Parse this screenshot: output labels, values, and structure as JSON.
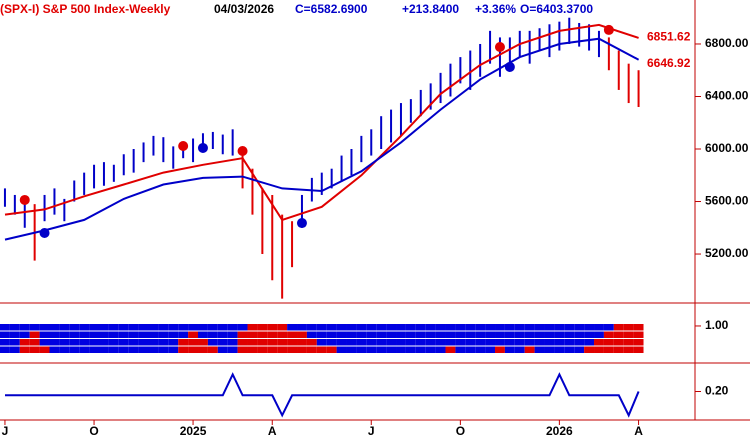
{
  "chart_data": [
    {
      "type": "hilo",
      "header": {
        "symbol": "(SPX-I) S&P 500 Index-Weekly",
        "date": "04/03/2026",
        "close": "C=6582.6900",
        "change": "+213.8400",
        "change_pct": "+3.36%",
        "open": "O=6403.3700"
      },
      "ylim": [
        4827,
        7135
      ],
      "yticks": [
        {
          "value": 5200,
          "label": "5200.00"
        },
        {
          "value": 5600,
          "label": "5600.00"
        },
        {
          "value": 6000,
          "label": "6000.00"
        },
        {
          "value": 6400,
          "label": "6400.00"
        },
        {
          "value": 6800,
          "label": "6800.00"
        }
      ],
      "low": [
        5560,
        5500,
        5400,
        5150,
        5450,
        5500,
        5450,
        5600,
        5650,
        5700,
        5720,
        5750,
        5800,
        5820,
        5900,
        5950,
        5900,
        5850,
        5930,
        5900,
        5980,
        6000,
        5960,
        5950,
        5700,
        5500,
        5200,
        5000,
        4860,
        5100,
        5400,
        5600,
        5650,
        5700,
        5750,
        5800,
        5900,
        5950,
        6000,
        6050,
        6100,
        6200,
        6250,
        6300,
        6350,
        6400,
        6500,
        6450,
        6550,
        6650,
        6550,
        6600,
        6700,
        6650,
        6750,
        6700,
        6750,
        6800,
        6780,
        6750,
        6700,
        6600,
        6450,
        6350,
        6320
      ],
      "high": [
        5700,
        5650,
        5620,
        5580,
        5650,
        5700,
        5620,
        5760,
        5820,
        5880,
        5900,
        5880,
        5960,
        6000,
        6050,
        6100,
        6090,
        6020,
        6050,
        6080,
        6120,
        6130,
        6110,
        6150,
        6000,
        5850,
        5700,
        5650,
        5500,
        5450,
        5650,
        5780,
        5820,
        5850,
        5950,
        6000,
        6100,
        6150,
        6250,
        6300,
        6350,
        6380,
        6450,
        6500,
        6580,
        6650,
        6700,
        6750,
        6800,
        6900,
        6850,
        6850,
        6900,
        6900,
        6920,
        6950,
        6970,
        7000,
        6960,
        6950,
        6900,
        6850,
        6750,
        6650,
        6600
      ],
      "colors": [
        "#0000c8",
        "#0000c8",
        "#0000c8",
        "#e00000",
        "#0000c8",
        "#0000c8",
        "#0000c8",
        "#0000c8",
        "#0000c8",
        "#0000c8",
        "#0000c8",
        "#0000c8",
        "#0000c8",
        "#0000c8",
        "#0000c8",
        "#0000c8",
        "#0000c8",
        "#0000c8",
        "#0000c8",
        "#0000c8",
        "#0000c8",
        "#0000c8",
        "#0000c8",
        "#0000c8",
        "#e00000",
        "#e00000",
        "#e00000",
        "#e00000",
        "#e00000",
        "#e00000",
        "#0000c8",
        "#0000c8",
        "#0000c8",
        "#0000c8",
        "#0000c8",
        "#0000c8",
        "#0000c8",
        "#0000c8",
        "#0000c8",
        "#0000c8",
        "#0000c8",
        "#0000c8",
        "#0000c8",
        "#0000c8",
        "#0000c8",
        "#0000c8",
        "#0000c8",
        "#0000c8",
        "#0000c8",
        "#0000c8",
        "#0000c8",
        "#0000c8",
        "#0000c8",
        "#0000c8",
        "#0000c8",
        "#0000c8",
        "#0000c8",
        "#0000c8",
        "#0000c8",
        "#0000c8",
        "#0000c8",
        "#e00000",
        "#e00000",
        "#e00000",
        "#e00000"
      ],
      "series": [
        {
          "color": "#e00000",
          "x": [
            0,
            4,
            8,
            12,
            16,
            20,
            24,
            28,
            32,
            36,
            40,
            44,
            48,
            52,
            56,
            60,
            64
          ],
          "values": [
            5500,
            5540,
            5640,
            5730,
            5820,
            5880,
            5930,
            5460,
            5560,
            5800,
            6100,
            6420,
            6640,
            6800,
            6900,
            6945,
            6846
          ]
        },
        {
          "color": "#0000c8",
          "x": [
            0,
            4,
            8,
            12,
            16,
            20,
            24,
            28,
            32,
            36,
            40,
            44,
            48,
            52,
            56,
            60,
            64
          ],
          "values": [
            5310,
            5380,
            5460,
            5620,
            5730,
            5780,
            5790,
            5700,
            5680,
            5830,
            6050,
            6300,
            6530,
            6700,
            6800,
            6840,
            6680
          ]
        }
      ],
      "markers": [
        {
          "color": "#e00000",
          "x": [
            2,
            18,
            24,
            50,
            61
          ],
          "values": [
            5612,
            6023,
            5985,
            6777,
            6907
          ]
        },
        {
          "color": "#0000c8",
          "x": [
            4,
            20,
            30,
            51
          ],
          "values": [
            5360,
            6008,
            5436,
            6625
          ]
        }
      ],
      "last_labels": [
        {
          "value": 6851.62,
          "label": "6851.62"
        },
        {
          "value": 6646.92,
          "label": "6646.92"
        }
      ]
    },
    {
      "type": "heatmap",
      "rows": 4,
      "colors": [
        "#0000e0",
        "#e00000"
      ],
      "values": [
        0,
        0,
        2,
        3,
        1,
        0,
        0,
        0,
        0,
        0,
        0,
        0,
        0,
        0,
        0,
        0,
        0,
        0,
        2,
        3,
        2,
        1,
        0,
        0,
        3,
        4,
        4,
        4,
        4,
        3,
        3,
        2,
        1,
        1,
        0,
        0,
        0,
        0,
        0,
        0,
        0,
        0,
        0,
        0,
        0,
        1,
        0,
        0,
        0,
        0,
        1,
        0,
        0,
        1,
        0,
        0,
        0,
        0,
        0,
        1,
        2,
        3,
        4,
        4,
        4
      ],
      "ylim": [
        0,
        1.62
      ],
      "yticks": [
        {
          "value": 1,
          "label": "1.00"
        }
      ]
    },
    {
      "type": "line",
      "color": "#0000c8",
      "x": [
        0,
        22,
        23,
        24,
        27,
        28,
        29,
        55,
        56,
        57,
        62,
        63,
        64
      ],
      "values": [
        0.18,
        0.18,
        0.29,
        0.18,
        0.18,
        0.075,
        0.18,
        0.18,
        0.29,
        0.18,
        0.18,
        0.075,
        0.2
      ],
      "ylim": [
        0.05,
        0.35
      ],
      "yticks": [
        {
          "value": 0.2,
          "label": "0.20"
        }
      ],
      "xlim": [
        -0.5,
        69.7
      ],
      "xticks": [
        {
          "value": 0,
          "label": "J"
        },
        {
          "value": 9,
          "label": "O"
        },
        {
          "value": 19,
          "label": "2025"
        },
        {
          "value": 27,
          "label": "A"
        },
        {
          "value": 37,
          "label": "J"
        },
        {
          "value": 46,
          "label": "O"
        },
        {
          "value": 56,
          "label": "2026"
        },
        {
          "value": 64,
          "label": "A"
        }
      ]
    }
  ]
}
